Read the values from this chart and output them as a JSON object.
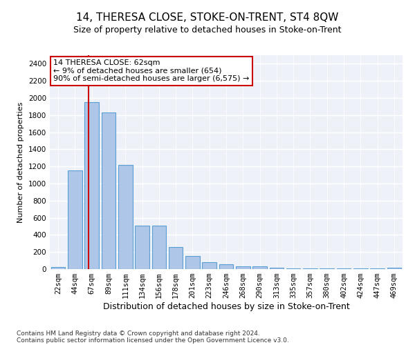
{
  "title": "14, THERESA CLOSE, STOKE-ON-TRENT, ST4 8QW",
  "subtitle": "Size of property relative to detached houses in Stoke-on-Trent",
  "xlabel": "Distribution of detached houses by size in Stoke-on-Trent",
  "ylabel": "Number of detached properties",
  "categories": [
    "22sqm",
    "44sqm",
    "67sqm",
    "89sqm",
    "111sqm",
    "134sqm",
    "156sqm",
    "178sqm",
    "201sqm",
    "223sqm",
    "246sqm",
    "268sqm",
    "290sqm",
    "313sqm",
    "335sqm",
    "357sqm",
    "380sqm",
    "402sqm",
    "424sqm",
    "447sqm",
    "469sqm"
  ],
  "values": [
    25,
    1150,
    1950,
    1830,
    1220,
    510,
    510,
    260,
    150,
    80,
    55,
    35,
    35,
    15,
    10,
    10,
    5,
    5,
    5,
    5,
    15
  ],
  "bar_color": "#aec6e8",
  "bar_edge_color": "#5a9fd4",
  "vline_color": "#cc0000",
  "annotation_text": "14 THERESA CLOSE: 62sqm\n← 9% of detached houses are smaller (654)\n90% of semi-detached houses are larger (6,575) →",
  "annotation_box_color": "#ffffff",
  "annotation_box_edge_color": "#cc0000",
  "ylim": [
    0,
    2500
  ],
  "yticks": [
    0,
    200,
    400,
    600,
    800,
    1000,
    1200,
    1400,
    1600,
    1800,
    2000,
    2200,
    2400
  ],
  "footer_line1": "Contains HM Land Registry data © Crown copyright and database right 2024.",
  "footer_line2": "Contains public sector information licensed under the Open Government Licence v3.0.",
  "background_color": "#eef2f8",
  "grid_color": "#ffffff",
  "title_fontsize": 11,
  "subtitle_fontsize": 9,
  "xlabel_fontsize": 9,
  "ylabel_fontsize": 8,
  "tick_fontsize": 7.5,
  "annotation_fontsize": 8,
  "footer_fontsize": 6.5
}
